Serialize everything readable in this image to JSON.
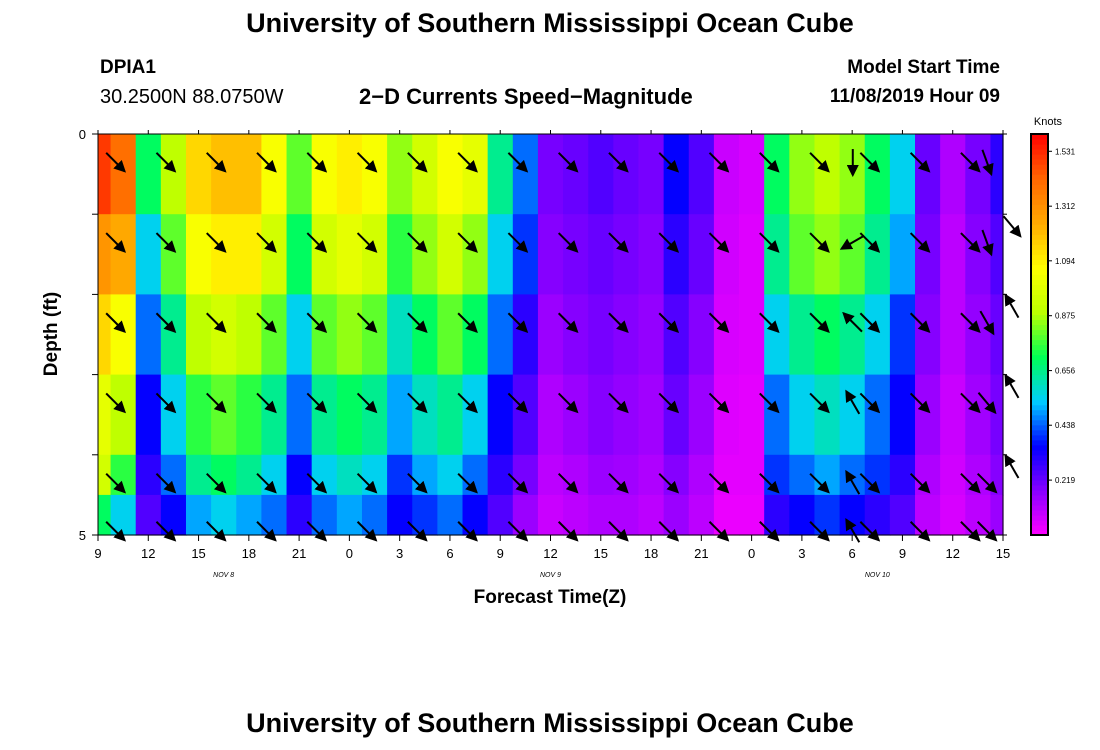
{
  "header": {
    "title": "University of Southern Mississippi Ocean Cube",
    "station": "DPIA1",
    "coordinates": "30.2500N 88.0750W",
    "subtitle": "2−D Currents Speed−Magnitude",
    "model_start_label": "Model Start Time",
    "model_start_value": "11/08/2019 Hour 09"
  },
  "footer": {
    "title": "University of Southern Mississippi Ocean Cube"
  },
  "chart_data": {
    "type": "heatmap",
    "xlabel": "Forecast Time(Z)",
    "ylabel": "Depth (ft)",
    "x_tick_labels": [
      "9",
      "12",
      "15",
      "18",
      "21",
      "0",
      "3",
      "6",
      "9",
      "12",
      "15",
      "18",
      "21",
      "0",
      "3",
      "6",
      "9",
      "12",
      "15"
    ],
    "x_range_hours": [
      0,
      54
    ],
    "y_tick_labels": [
      "0",
      "5"
    ],
    "y_range": [
      0,
      5
    ],
    "date_labels": [
      {
        "text": "NOV  8",
        "hour": 7.5
      },
      {
        "text": "NOV  9",
        "hour": 27
      },
      {
        "text": "NOV  10",
        "hour": 46.5
      }
    ],
    "colorbar": {
      "title": "Knots",
      "ticks": [
        "1.531",
        "1.312",
        "1.094",
        "0.875",
        "0.656",
        "0.438",
        "0.219"
      ],
      "tick_values": [
        1.531,
        1.312,
        1.094,
        0.875,
        0.656,
        0.438,
        0.219
      ],
      "range": [
        0,
        1.6
      ],
      "colors": [
        "#ff00ff",
        "#8800ff",
        "#0000ff",
        "#00ccff",
        "#00ff55",
        "#bbff00",
        "#ffff00",
        "#ffaa00",
        "#ff6600",
        "#ff0000"
      ]
    },
    "time_hours": [
      0,
      1.5,
      3,
      4.5,
      6,
      7.5,
      9,
      10.5,
      12,
      13.5,
      15,
      16.5,
      18,
      19.5,
      21,
      22.5,
      24,
      25.5,
      27,
      28.5,
      30,
      31.5,
      33,
      34.5,
      36,
      37.5,
      39,
      40.5,
      42,
      43.5,
      45,
      46.5,
      48,
      49.5,
      51,
      52.5,
      54
    ],
    "depth_layers": [
      0.5,
      1.5,
      2.5,
      3.5,
      4.5,
      5.0
    ],
    "speed_knots": [
      [
        1.5,
        1.4,
        0.7,
        0.9,
        1.15,
        1.2,
        1.2,
        1.05,
        0.8,
        1.05,
        1.1,
        1.05,
        0.85,
        0.95,
        1.05,
        1.0,
        0.65,
        0.45,
        0.2,
        0.22,
        0.25,
        0.22,
        0.2,
        0.35,
        0.25,
        0.08,
        0.06,
        0.7,
        0.85,
        0.9,
        0.85,
        0.7,
        0.55,
        0.22,
        0.12,
        0.2,
        0.3
      ],
      [
        1.3,
        1.25,
        0.55,
        0.8,
        1.05,
        1.1,
        1.1,
        0.95,
        0.7,
        0.95,
        1.0,
        0.95,
        0.75,
        0.85,
        0.95,
        0.85,
        0.55,
        0.4,
        0.18,
        0.2,
        0.22,
        0.2,
        0.18,
        0.3,
        0.22,
        0.07,
        0.05,
        0.65,
        0.8,
        0.85,
        0.8,
        0.65,
        0.5,
        0.2,
        0.1,
        0.18,
        0.25
      ],
      [
        1.15,
        1.05,
        0.45,
        0.65,
        0.9,
        0.95,
        0.9,
        0.8,
        0.55,
        0.8,
        0.85,
        0.8,
        0.6,
        0.7,
        0.8,
        0.7,
        0.45,
        0.3,
        0.15,
        0.18,
        0.2,
        0.18,
        0.16,
        0.25,
        0.18,
        0.06,
        0.05,
        0.55,
        0.65,
        0.7,
        0.65,
        0.55,
        0.4,
        0.18,
        0.1,
        0.16,
        0.22
      ],
      [
        1.0,
        0.9,
        0.35,
        0.55,
        0.75,
        0.8,
        0.75,
        0.65,
        0.45,
        0.65,
        0.7,
        0.65,
        0.5,
        0.6,
        0.65,
        0.55,
        0.35,
        0.25,
        0.12,
        0.15,
        0.18,
        0.16,
        0.14,
        0.22,
        0.15,
        0.05,
        0.04,
        0.45,
        0.55,
        0.6,
        0.55,
        0.45,
        0.35,
        0.15,
        0.08,
        0.14,
        0.2
      ],
      [
        0.95,
        0.75,
        0.3,
        0.45,
        0.65,
        0.7,
        0.65,
        0.55,
        0.35,
        0.55,
        0.6,
        0.55,
        0.4,
        0.5,
        0.55,
        0.45,
        0.3,
        0.2,
        0.1,
        0.12,
        0.15,
        0.14,
        0.12,
        0.18,
        0.12,
        0.04,
        0.04,
        0.4,
        0.45,
        0.5,
        0.45,
        0.4,
        0.3,
        0.12,
        0.07,
        0.12,
        0.18
      ],
      [
        0.7,
        0.55,
        0.25,
        0.35,
        0.5,
        0.55,
        0.5,
        0.45,
        0.3,
        0.45,
        0.5,
        0.45,
        0.35,
        0.4,
        0.45,
        0.35,
        0.25,
        0.15,
        0.08,
        0.1,
        0.12,
        0.12,
        0.1,
        0.15,
        0.1,
        0.03,
        0.03,
        0.3,
        0.35,
        0.4,
        0.35,
        0.3,
        0.25,
        0.1,
        0.06,
        0.1,
        0.15
      ]
    ],
    "arrow_times_hours": [
      0.5,
      3.5,
      6.5,
      9.5,
      12.5,
      15.5,
      18.5,
      21.5,
      24.5,
      27.5,
      30.5,
      33.5,
      36.5,
      39.5,
      42.5,
      45.5,
      48.5,
      51.5
    ],
    "arrow_depths": [
      0.2,
      1.2,
      2.2,
      3.2,
      4.2,
      4.8
    ],
    "arrow_directions_deg": [
      [
        135,
        135,
        135,
        135,
        135,
        135,
        135,
        135,
        135,
        135,
        135,
        135,
        135,
        135,
        135,
        135,
        135,
        135
      ],
      [
        135,
        135,
        135,
        135,
        135,
        135,
        135,
        135,
        135,
        135,
        135,
        135,
        135,
        135,
        135,
        135,
        135,
        135
      ],
      [
        135,
        135,
        135,
        135,
        135,
        135,
        135,
        135,
        135,
        135,
        135,
        135,
        135,
        135,
        135,
        135,
        135,
        135
      ],
      [
        135,
        135,
        135,
        135,
        135,
        135,
        135,
        135,
        135,
        135,
        135,
        135,
        135,
        135,
        135,
        135,
        135,
        135
      ],
      [
        135,
        135,
        135,
        135,
        135,
        135,
        135,
        135,
        135,
        135,
        135,
        135,
        135,
        135,
        135,
        135,
        135,
        135
      ],
      [
        135,
        135,
        135,
        135,
        135,
        135,
        135,
        135,
        135,
        135,
        135,
        135,
        135,
        135,
        135,
        135,
        135,
        135
      ]
    ],
    "arrow_special": [
      {
        "time": 44.5,
        "depth": 0.2,
        "direction": 180
      },
      {
        "time": 44.5,
        "depth": 1.2,
        "direction": 240
      },
      {
        "time": 44.5,
        "depth": 2.2,
        "direction": 315
      },
      {
        "time": 44.5,
        "depth": 3.2,
        "direction": 330
      },
      {
        "time": 44.5,
        "depth": 4.2,
        "direction": 330
      },
      {
        "time": 44.5,
        "depth": 4.8,
        "direction": 330
      },
      {
        "time": 52.5,
        "depth": 0.2,
        "direction": 160
      },
      {
        "time": 52.5,
        "depth": 1.2,
        "direction": 160
      },
      {
        "time": 52.5,
        "depth": 2.2,
        "direction": 150
      },
      {
        "time": 52.5,
        "depth": 3.2,
        "direction": 140
      },
      {
        "time": 52.5,
        "depth": 4.2,
        "direction": 135
      },
      {
        "time": 52.5,
        "depth": 4.8,
        "direction": 135
      },
      {
        "time": 54,
        "depth": 1.0,
        "direction": 140
      },
      {
        "time": 54,
        "depth": 2.0,
        "direction": 330
      },
      {
        "time": 54,
        "depth": 3.0,
        "direction": 330
      },
      {
        "time": 54,
        "depth": 4.0,
        "direction": 330
      }
    ]
  }
}
